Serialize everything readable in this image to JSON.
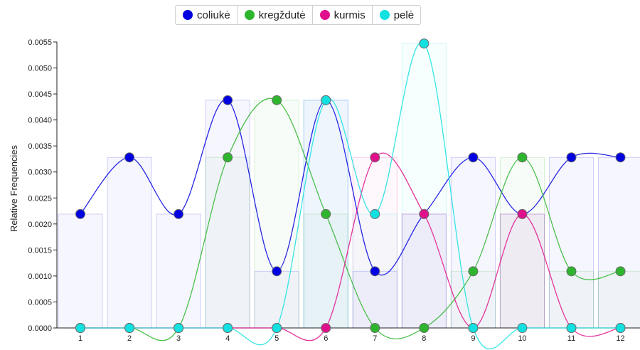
{
  "chart_data": {
    "type": "line",
    "title": "",
    "xlabel": "",
    "ylabel": "Relative Frequencies",
    "ylim": [
      0,
      0.0055
    ],
    "y_ticks": [
      "0.0000",
      "0.0005",
      "0.0010",
      "0.0015",
      "0.0020",
      "0.0025",
      "0.0030",
      "0.0035",
      "0.0040",
      "0.0045",
      "0.0050",
      "0.0055"
    ],
    "categories": [
      "1",
      "2",
      "3",
      "4",
      "5",
      "6",
      "7",
      "8",
      "9",
      "10",
      "11",
      "12"
    ],
    "legend_position": "top-center",
    "grid": false,
    "series": [
      {
        "name": "coliukė",
        "color": "#0000e0",
        "values": [
          0.00219,
          0.00328,
          0.00219,
          0.00438,
          0.00109,
          0.00438,
          0.00109,
          0.00219,
          0.00328,
          0.00219,
          0.00328,
          0.00328
        ]
      },
      {
        "name": "kregždutė",
        "color": "#2db52d",
        "values": [
          0,
          0,
          0,
          0.00328,
          0.00438,
          0.00219,
          0,
          0,
          0.00109,
          0.00328,
          0.00109,
          0.00109
        ]
      },
      {
        "name": "kurmis",
        "color": "#e0108c",
        "values": [
          0,
          0,
          0,
          0,
          0,
          0,
          0.00328,
          0.00219,
          0,
          0.00219,
          0,
          0
        ]
      },
      {
        "name": "pelė",
        "color": "#13e0e0",
        "values": [
          0,
          0,
          0,
          0,
          0,
          0.00438,
          0.00219,
          0.00547,
          0,
          0,
          0,
          0
        ]
      }
    ]
  }
}
